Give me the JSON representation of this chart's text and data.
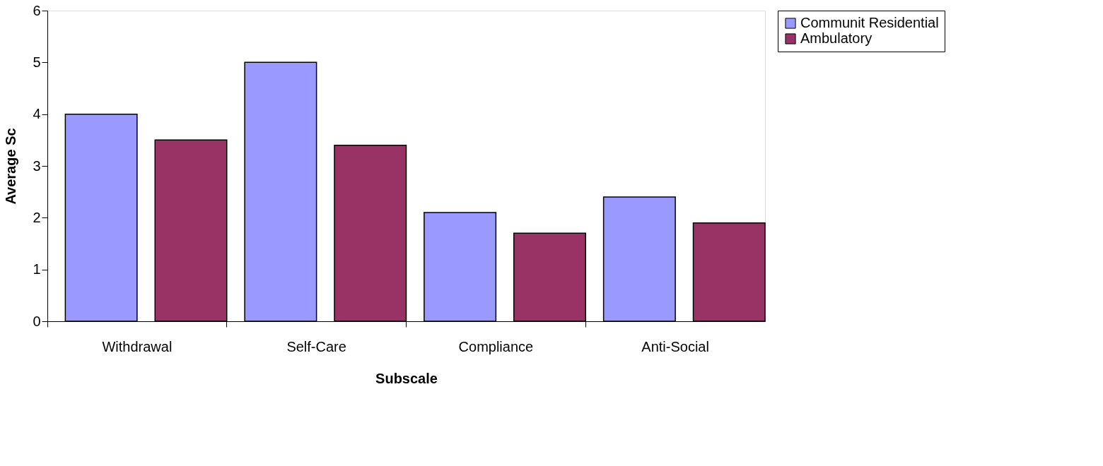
{
  "chart_data": {
    "type": "bar",
    "xlabel": "Subscale",
    "ylabel": "Average Sc",
    "categories": [
      "Withdrawal",
      "Self-Care",
      "Compliance",
      "Anti-Social"
    ],
    "series": [
      {
        "name": "Communit Residential",
        "color": "#9999ff",
        "values": [
          4.0,
          5.0,
          2.1,
          2.4
        ]
      },
      {
        "name": "Ambulatory",
        "color": "#993366",
        "values": [
          3.5,
          3.4,
          1.7,
          1.9
        ]
      }
    ],
    "ylim": [
      0,
      6
    ],
    "yticks": [
      0,
      1,
      2,
      3,
      4,
      5,
      6
    ],
    "grid": false,
    "legend": "right"
  }
}
